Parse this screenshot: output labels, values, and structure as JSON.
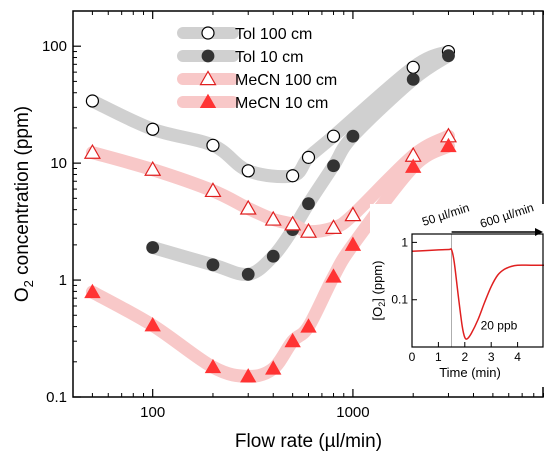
{
  "chart_data": [
    {
      "type": "scatter",
      "xlabel": "Flow rate (µl/min)",
      "ylabel_main": "O",
      "ylabel_sub": "2",
      "ylabel_rest": " concentration (ppm)",
      "x_scale": "log",
      "y_scale": "log",
      "xlim": [
        40,
        9000
      ],
      "ylim": [
        0.1,
        200
      ],
      "x_ticks": [
        100,
        1000
      ],
      "x_tick_labels": [
        "100",
        "1000"
      ],
      "y_ticks": [
        0.1,
        1,
        10,
        100
      ],
      "y_tick_labels": [
        "0.1",
        "1",
        "10",
        "100"
      ],
      "legend_position": "top-center",
      "series": [
        {
          "name": "Tol 100 cm",
          "marker": "circle-open",
          "color": "#000000",
          "band_color": "#d0d0d0",
          "x": [
            50,
            100,
            200,
            300,
            500,
            600,
            800,
            2000,
            3000
          ],
          "y": [
            34,
            19.5,
            14.2,
            8.6,
            7.8,
            11.2,
            17,
            66,
            90
          ]
        },
        {
          "name": "Tol 10 cm",
          "marker": "circle-filled",
          "color": "#333333",
          "band_color": "#d0d0d0",
          "x": [
            100,
            200,
            300,
            400,
            500,
            600,
            800,
            1000,
            2000,
            3000
          ],
          "y": [
            1.9,
            1.35,
            1.12,
            1.6,
            2.7,
            4.5,
            9.5,
            17,
            52,
            83
          ]
        },
        {
          "name": "MeCN 100 cm",
          "marker": "triangle-open",
          "color": "#e02020",
          "band_color": "#f8c8c8",
          "x": [
            50,
            100,
            200,
            300,
            400,
            500,
            600,
            800,
            1000,
            2000,
            3000
          ],
          "y": [
            12.3,
            8.8,
            5.8,
            4.1,
            3.3,
            3.0,
            2.6,
            2.8,
            3.6,
            11.6,
            17
          ]
        },
        {
          "name": "MeCN 10 cm",
          "marker": "triangle-filled",
          "color": "#ff3333",
          "band_color": "#f8c8c8",
          "x": [
            50,
            100,
            200,
            300,
            400,
            500,
            600,
            800,
            1000,
            2000,
            3000
          ],
          "y": [
            0.79,
            0.41,
            0.18,
            0.15,
            0.175,
            0.3,
            0.4,
            1.07,
            2.0,
            9.3,
            14
          ]
        }
      ]
    },
    {
      "type": "line",
      "xlabel": "Time (min)",
      "ylabel_main": "[O",
      "ylabel_sub": "2",
      "ylabel_rest": "] (ppm)",
      "x_scale": "linear",
      "y_scale": "log",
      "xlim": [
        0,
        5
      ],
      "ylim": [
        0.015,
        1.4
      ],
      "x_ticks": [
        0,
        1,
        2,
        3,
        4
      ],
      "x_tick_labels": [
        "0",
        "1",
        "2",
        "3",
        "4"
      ],
      "y_ticks": [
        0.1,
        1
      ],
      "y_tick_labels": [
        "0.1",
        "1"
      ],
      "annotations": [
        "50 µl/min",
        "600 µl/min",
        "20 ppb"
      ],
      "marker_line_x": 1.5,
      "series": [
        {
          "color": "#e02020",
          "x": [
            0,
            0.5,
            1.0,
            1.4,
            1.5,
            1.6,
            1.75,
            1.9,
            2.0,
            2.1,
            2.25,
            2.5,
            2.75,
            3.0,
            3.25,
            3.5,
            3.75,
            4.0,
            4.5,
            5.0
          ],
          "y": [
            0.7,
            0.72,
            0.74,
            0.75,
            0.74,
            0.45,
            0.12,
            0.035,
            0.022,
            0.021,
            0.026,
            0.045,
            0.09,
            0.17,
            0.27,
            0.34,
            0.38,
            0.4,
            0.4,
            0.4
          ]
        }
      ]
    }
  ]
}
